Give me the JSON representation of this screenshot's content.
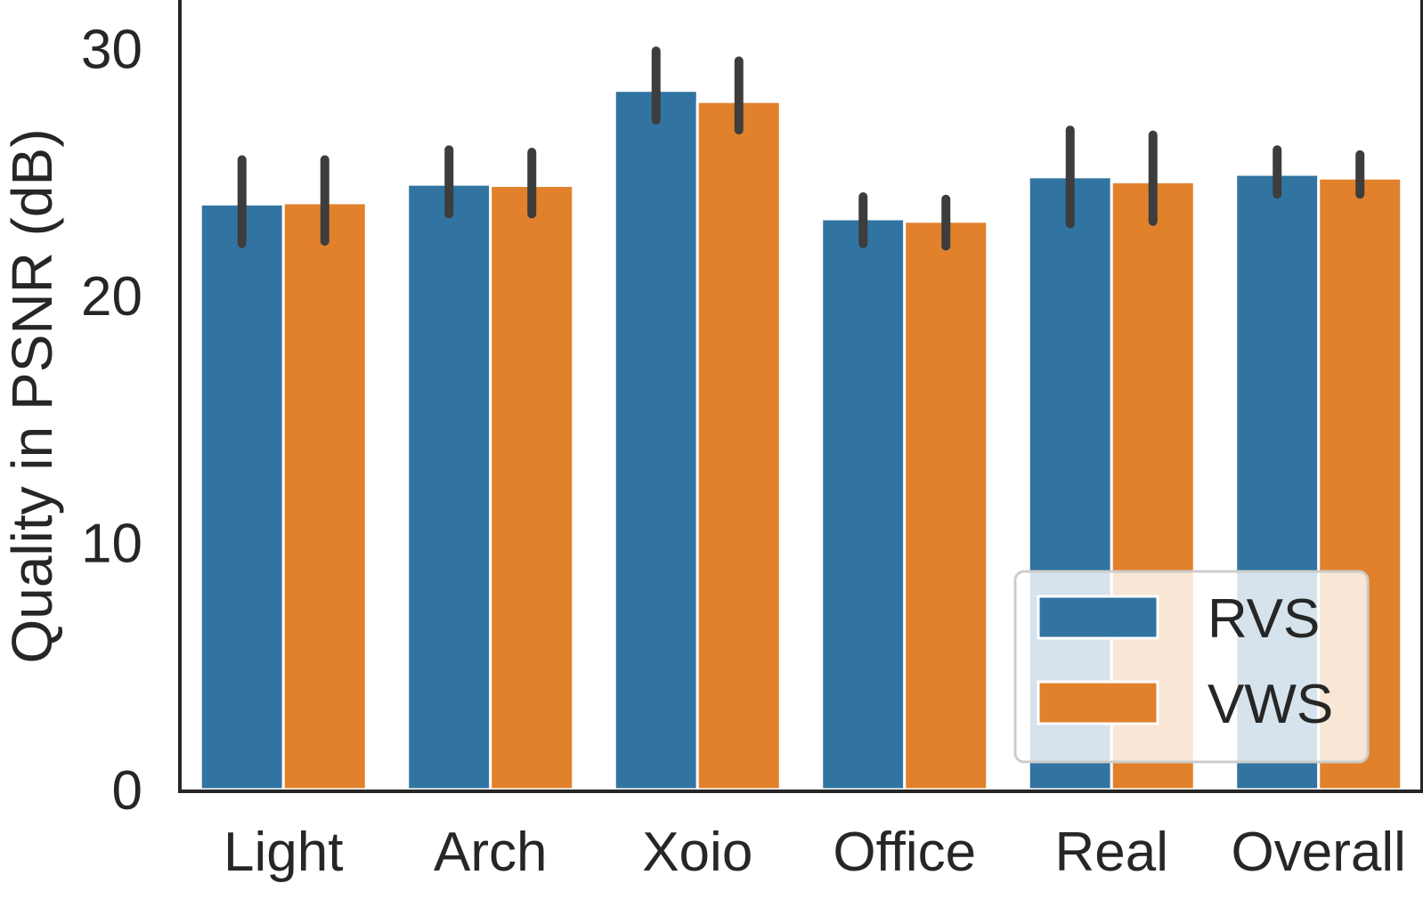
{
  "chart_data": {
    "type": "bar",
    "title": "",
    "xlabel": "",
    "ylabel": "Quality in PSNR (dB)",
    "ylim": [
      0,
      32
    ],
    "yticks": [
      0,
      10,
      20,
      30
    ],
    "ytick_labels": [
      "0",
      "10",
      "20",
      "30"
    ],
    "grid": false,
    "legend_position": "bottom-right",
    "categories": [
      "Light",
      "Arch",
      "Xoio",
      "Office",
      "Real",
      "Overall"
    ],
    "series": [
      {
        "name": "RVS",
        "color": "#3274a1",
        "values": [
          23.7,
          24.5,
          28.3,
          23.1,
          24.8,
          24.9
        ],
        "err_low": [
          22.1,
          23.3,
          27.1,
          22.1,
          22.9,
          24.1
        ],
        "err_high": [
          25.5,
          25.9,
          29.9,
          24.0,
          26.7,
          25.9
        ]
      },
      {
        "name": "VWS",
        "color": "#e1812c",
        "values": [
          23.75,
          24.45,
          27.85,
          23.0,
          24.6,
          24.75
        ],
        "err_low": [
          22.2,
          23.3,
          26.7,
          22.0,
          23.0,
          24.1
        ],
        "err_high": [
          25.5,
          25.8,
          29.5,
          23.9,
          26.5,
          25.7
        ]
      }
    ]
  }
}
